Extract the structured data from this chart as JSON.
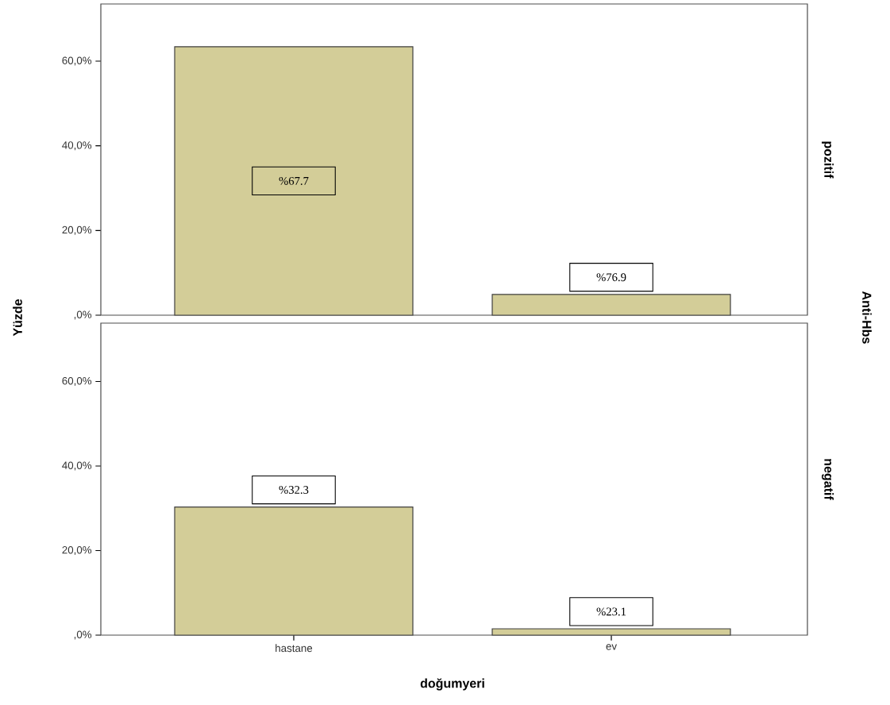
{
  "chart_data": [
    {
      "type": "bar",
      "y2label": "pozitif",
      "ylabel": "Yüzde",
      "categories": [
        null,
        null
      ],
      "values": [
        63.4,
        4.9
      ],
      "color": "#d3cd98",
      "ylim": [
        0,
        73.5
      ],
      "yticks": [
        {
          "value": 0,
          "label": ",0%"
        },
        {
          "value": 20,
          "label": "20,0%"
        },
        {
          "value": 40,
          "label": "40,0%"
        },
        {
          "value": 60,
          "label": "60,0%"
        }
      ],
      "tick_labels": "y",
      "annotations": [
        "%67.7",
        "%76.9",
        "Anti-Hbs"
      ]
    },
    {
      "type": "bar",
      "y2label": "negatif",
      "xlabel": "doğumyeri",
      "categories": [
        "hastane",
        "ev"
      ],
      "values": [
        30.3,
        1.5
      ],
      "color": "#d3cd98",
      "ylim": [
        0,
        73.8
      ],
      "yticks": [
        {
          "value": 0,
          "label": ",0%"
        },
        {
          "value": 20,
          "label": "20,0%"
        },
        {
          "value": 40,
          "label": "40,0%"
        },
        {
          "value": 60,
          "label": "60,0%"
        }
      ],
      "annotations": [
        "%32.3",
        "%23.1"
      ]
    }
  ]
}
